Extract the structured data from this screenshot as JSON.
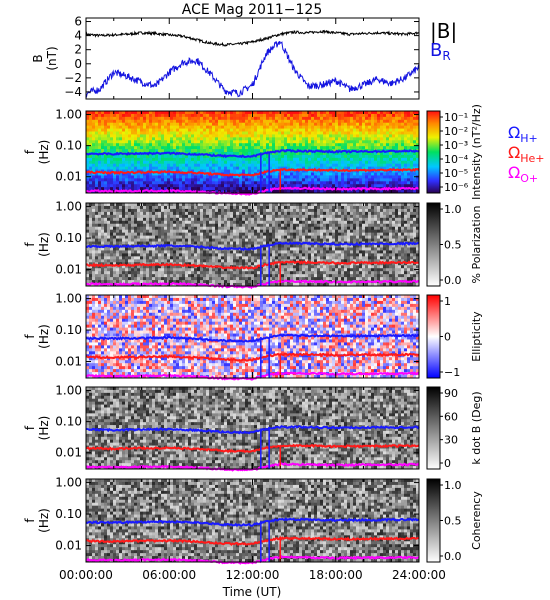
{
  "chart_data": {
    "type": "heatmap",
    "title": "ACE Mag 2011−125",
    "xlabel": "Time (UT)",
    "xticks": [
      "00:00:00",
      "06:00:00",
      "12:00:00",
      "18:00:00",
      "24:00:00"
    ],
    "xlim_hours": [
      0,
      24
    ],
    "legend_b": [
      "|B|",
      "B_R"
    ],
    "legend_cyclotron": [
      "Ω_H+",
      "Ω_He+",
      "Ω_O+"
    ],
    "colors": {
      "b_total": "#000000",
      "b_r": "#1414e0",
      "omega_h": "#1a1aff",
      "omega_he": "#ff1a1a",
      "omega_o": "#ff00ff"
    },
    "panels": [
      {
        "kind": "line",
        "ylabel": "B (nT)",
        "ylim": [
          -5,
          6.5
        ],
        "yticks": [
          6,
          4,
          2,
          0,
          -2,
          -4
        ],
        "series": [
          {
            "name": "|B|",
            "x": [
              0,
              1,
              2,
              3,
              4,
              5,
              6,
              7,
              8,
              9,
              10,
              11,
              12,
              13,
              14,
              15,
              16,
              17,
              18,
              19,
              20,
              21,
              22,
              23,
              24
            ],
            "y": [
              4.2,
              4.0,
              4.1,
              4.2,
              4.4,
              4.3,
              4.1,
              3.9,
              3.4,
              2.9,
              2.7,
              2.8,
              3.1,
              3.6,
              4.2,
              4.5,
              4.4,
              4.6,
              4.4,
              4.2,
              4.3,
              4.4,
              4.3,
              4.2,
              4.4
            ]
          },
          {
            "name": "B_R",
            "x": [
              0,
              1,
              2,
              3,
              4,
              5,
              6,
              7,
              8,
              9,
              10,
              11,
              12,
              13,
              14,
              15,
              16,
              17,
              18,
              19,
              20,
              21,
              22,
              23,
              24
            ],
            "y": [
              -4.2,
              -3.6,
              -1.2,
              -1.8,
              -2.6,
              -3.2,
              -1.2,
              0.2,
              0.5,
              -1.5,
              -3.8,
              -4.2,
              -3.0,
              1.5,
              3.2,
              -0.8,
              -3.2,
              -3.0,
              -2.4,
              -3.6,
              -3.0,
              -2.2,
              -2.8,
              -2.0,
              -0.5
            ]
          }
        ]
      },
      {
        "kind": "heat",
        "scheme": "rainbow",
        "ylabel": "f (Hz)",
        "cbar_label": "Intensity (nT²/Hz)",
        "cbar_ticks": [
          "10⁻¹",
          "10⁻²",
          "10⁻³",
          "10⁻⁴",
          "10⁻⁵",
          "10⁻⁶"
        ]
      },
      {
        "kind": "heat",
        "scheme": "gray",
        "ylabel": "f (Hz)",
        "cbar_label": "% Polarization",
        "cbar_ticks": [
          "1.0",
          "0.5",
          "0.0"
        ]
      },
      {
        "kind": "heat",
        "scheme": "diverge",
        "ylabel": "f (Hz)",
        "cbar_label": "Ellipticity",
        "cbar_ticks": [
          "1",
          "0",
          "−1"
        ]
      },
      {
        "kind": "heat",
        "scheme": "gray",
        "ylabel": "f (Hz)",
        "cbar_label": "k dot B (Deg)",
        "cbar_ticks": [
          "90",
          "60",
          "30",
          "0"
        ]
      },
      {
        "kind": "heat",
        "scheme": "gray",
        "ylabel": "f (Hz)",
        "cbar_label": "Coherency",
        "cbar_ticks": [
          "1.0",
          "0.5",
          "0.0"
        ]
      }
    ],
    "freq_ticks": [
      "1.00",
      "0.10",
      "0.01"
    ],
    "freq_ylim_hz": [
      0.003,
      1.3
    ],
    "cyclotron_hz": {
      "x": [
        0,
        2,
        4,
        6,
        8,
        10,
        12,
        13,
        14,
        16,
        18,
        20,
        22,
        24
      ],
      "h_plus": [
        0.055,
        0.054,
        0.056,
        0.057,
        0.053,
        0.046,
        0.045,
        0.058,
        0.068,
        0.067,
        0.064,
        0.065,
        0.066,
        0.067
      ],
      "he_plus": [
        0.014,
        0.0135,
        0.014,
        0.0143,
        0.0133,
        0.0115,
        0.0112,
        0.0145,
        0.017,
        0.0168,
        0.016,
        0.0163,
        0.0165,
        0.0168
      ],
      "o_plus": [
        0.0035,
        0.0034,
        0.0035,
        0.0036,
        0.0033,
        0.0029,
        0.0028,
        0.0036,
        0.0043,
        0.0042,
        0.004,
        0.0041,
        0.0041,
        0.0042
      ]
    }
  }
}
